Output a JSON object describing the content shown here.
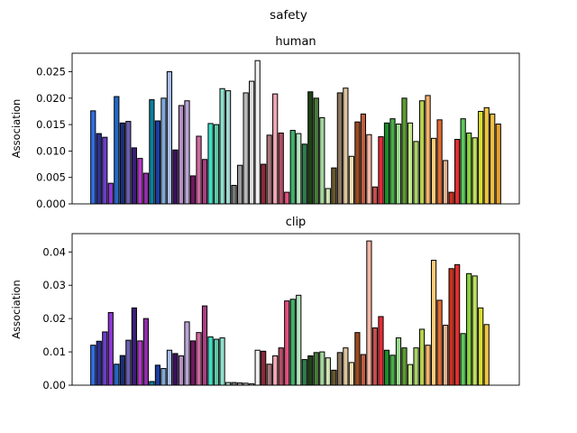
{
  "figure": {
    "suptitle": "safety"
  },
  "chart_data": [
    {
      "type": "bar",
      "title": "human",
      "xlabel": "",
      "ylabel": "Association",
      "ylim": [
        0,
        0.0285
      ],
      "yticks": [
        "0.000",
        "0.005",
        "0.010",
        "0.015",
        "0.020",
        "0.025"
      ],
      "grid": false,
      "colors": [
        "#2f6ee6",
        "#2d2f92",
        "#6a3fc9",
        "#8e36d6",
        "#2468c8",
        "#1c2e74",
        "#6b5fb0",
        "#3b2076",
        "#b238c6",
        "#8e2fa6",
        "#0d7e9e",
        "#1c3ea0",
        "#7fa9d8",
        "#a8bde8",
        "#3d0f5c",
        "#b58ec4",
        "#b9a3d6",
        "#71185e",
        "#d2689f",
        "#a83e82",
        "#3fe0c6",
        "#5cc7a6",
        "#8ee0cc",
        "#9fd6cf",
        "#777777",
        "#9a9a9a",
        "#b9b9b9",
        "#dcdcdc",
        "#f1f1f1",
        "#8b2a3a",
        "#a87478",
        "#f1a5b2",
        "#b34d64",
        "#e04f7c",
        "#3fb36b",
        "#b7e5c1",
        "#2e7e4c",
        "#1f4216",
        "#497a3c",
        "#a3d49d",
        "#cfe4b4",
        "#66582e",
        "#8b7761",
        "#dcc49c",
        "#ede0b0",
        "#9e4a20",
        "#c05e3e",
        "#f4b7a4",
        "#c44e4c",
        "#e82a36",
        "#1c8e2a",
        "#45ae45",
        "#98d98c",
        "#5b9c31",
        "#c4e88c",
        "#a9d26a",
        "#b5d14e",
        "#f4b26a",
        "#ffca7a",
        "#e16a30",
        "#e0b090",
        "#d0301a",
        "#e52d2d",
        "#5ac95a",
        "#8ad23c",
        "#bde05c",
        "#dbe02c",
        "#f0c640",
        "#f0c040",
        "#e6a030"
      ],
      "values": [
        0.0176,
        0.0133,
        0.0126,
        0.0039,
        0.0203,
        0.0153,
        0.0156,
        0.0106,
        0.0086,
        0.0058,
        0.0197,
        0.0157,
        0.02,
        0.025,
        0.0102,
        0.0186,
        0.0195,
        0.0053,
        0.0128,
        0.0084,
        0.0152,
        0.015,
        0.0218,
        0.0214,
        0.0035,
        0.0073,
        0.021,
        0.0232,
        0.0271,
        0.0075,
        0.013,
        0.0208,
        0.0134,
        0.0022,
        0.0139,
        0.0133,
        0.0113,
        0.0212,
        0.02,
        0.0163,
        0.0029,
        0.0068,
        0.021,
        0.0219,
        0.009,
        0.0155,
        0.017,
        0.0131,
        0.0032,
        0.0127,
        0.0153,
        0.0161,
        0.0151,
        0.02,
        0.0153,
        0.0118,
        0.0195,
        0.0205,
        0.0124,
        0.0159,
        0.0082,
        0.0022,
        0.0122,
        0.0161,
        0.0134,
        0.0125,
        0.0175,
        0.0182,
        0.017,
        0.0151
      ]
    },
    {
      "type": "bar",
      "title": "clip",
      "xlabel": "",
      "ylabel": "Association",
      "ylim": [
        0,
        0.0455
      ],
      "yticks": [
        "0.00",
        "0.01",
        "0.02",
        "0.03",
        "0.04"
      ],
      "grid": false,
      "colors": [
        "#2f6ee6",
        "#2d2f92",
        "#6a3fc9",
        "#8e36d6",
        "#2468c8",
        "#1c2e74",
        "#6b5fb0",
        "#3b2076",
        "#b238c6",
        "#8e2fa6",
        "#0d7e9e",
        "#1c3ea0",
        "#7fa9d8",
        "#a8bde8",
        "#3d0f5c",
        "#b58ec4",
        "#b9a3d6",
        "#71185e",
        "#d2689f",
        "#a83e82",
        "#3fe0c6",
        "#5cc7a6",
        "#8ee0cc",
        "#9fd6cf",
        "#777777",
        "#9a9a9a",
        "#b9b9b9",
        "#dcdcdc",
        "#f1f1f1",
        "#8b2a3a",
        "#a87478",
        "#f1a5b2",
        "#b34d64",
        "#e04f7c",
        "#3fb36b",
        "#b7e5c1",
        "#2e7e4c",
        "#1f4216",
        "#497a3c",
        "#a3d49d",
        "#cfe4b4",
        "#66582e",
        "#8b7761",
        "#dcc49c",
        "#ede0b0",
        "#9e4a20",
        "#c05e3e",
        "#f4b7a4",
        "#c44e4c",
        "#e82a36",
        "#1c8e2a",
        "#45ae45",
        "#98d98c",
        "#5b9c31",
        "#c4e88c",
        "#a9d26a",
        "#b5d14e",
        "#f4b26a",
        "#ffca7a",
        "#e16a30",
        "#e0b090",
        "#d0301a",
        "#e52d2d",
        "#5ac95a",
        "#8ad23c",
        "#bde05c",
        "#dbe02c",
        "#f0c640",
        "#f0c040",
        "#e6a030"
      ],
      "values": [
        0.012,
        0.0132,
        0.016,
        0.0218,
        0.0063,
        0.0089,
        0.0135,
        0.0232,
        0.0133,
        0.02,
        0.0011,
        0.006,
        0.005,
        0.0105,
        0.0095,
        0.0088,
        0.019,
        0.0133,
        0.0158,
        0.0238,
        0.0145,
        0.0138,
        0.0142,
        0.0008,
        0.0008,
        0.0007,
        0.0006,
        0.0004,
        0.0105,
        0.0102,
        0.0063,
        0.0088,
        0.0112,
        0.0253,
        0.0258,
        0.027,
        0.0077,
        0.0088,
        0.0098,
        0.01,
        0.0082,
        0.0045,
        0.0098,
        0.0112,
        0.0068,
        0.0158,
        0.0092,
        0.0433,
        0.0172,
        0.0206,
        0.0105,
        0.009,
        0.0142,
        0.0112,
        0.0062,
        0.0112,
        0.0168,
        0.012,
        0.0375,
        0.0255,
        0.018,
        0.035,
        0.0362,
        0.0155,
        0.0335,
        0.0328,
        0.0232,
        0.0182,
        0,
        0
      ]
    }
  ]
}
